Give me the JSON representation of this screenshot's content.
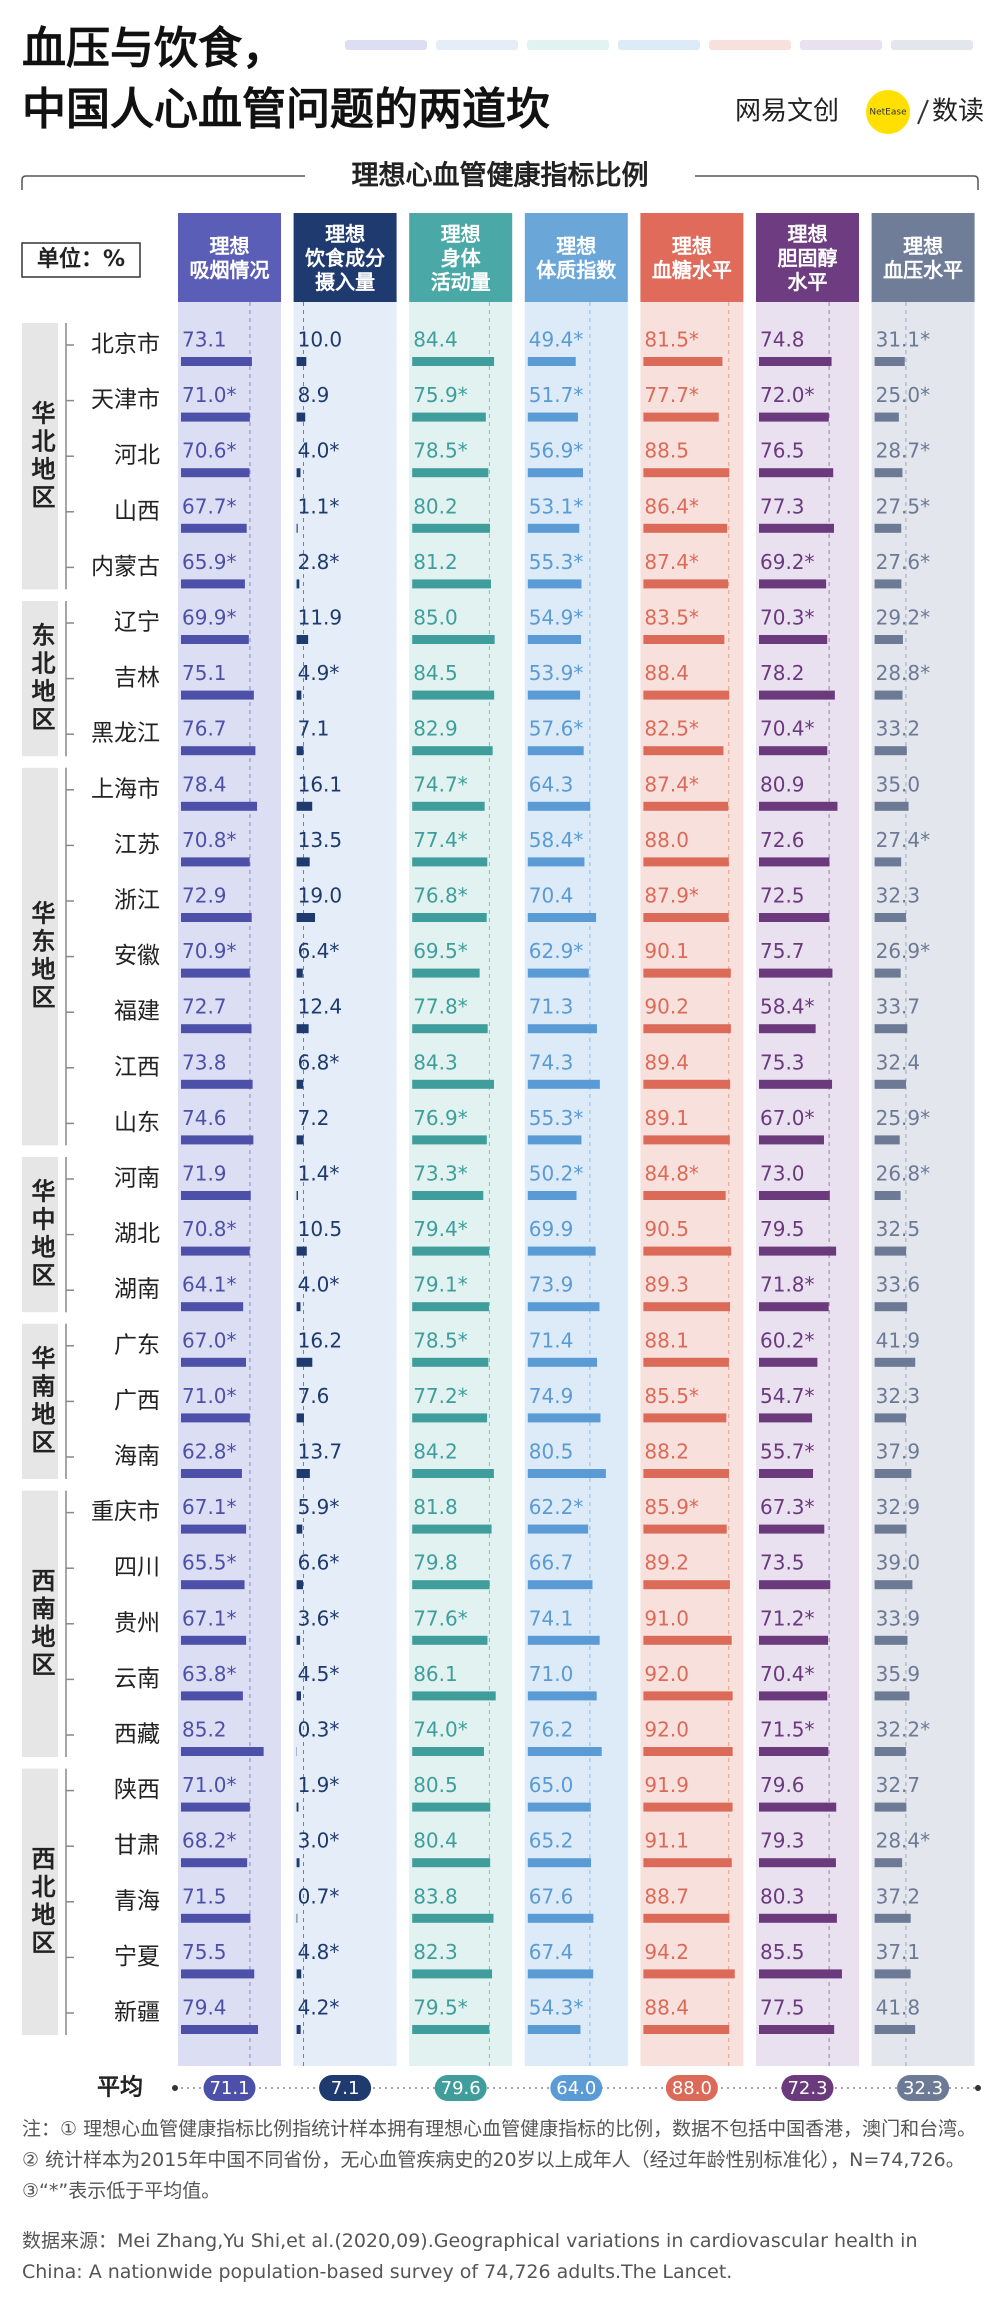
{
  "title": [
    "血压与饮食，",
    "中国人心血管问题的两道坎"
  ],
  "logo": {
    "brand": "网易文创",
    "badge": "NetEase",
    "column": "数读"
  },
  "note": "注：① 理想心血管健康指标比例指统计样本拥有理想心血管健康指标的比例，数据不包括中国香港，澳门和台湾。 ② 统计样本为2015年中国不同省份，无心血管疾病史的20岁以上成年人（经过年龄性别标准化），N=74,726。③“*”表示低于平均值。",
  "source": "数据来源：Mei Zhang,Yu Shi,et al.(2020,09).Geographical variations in cardiovascular health in China: A nationwide population-based survey of 74,726 adults.The Lancet.",
  "chart_data": {
    "type": "bar",
    "title": "理想心血管健康指标比例",
    "unit_label": "单位：%",
    "average_row_label": "平均",
    "xlim": [
      0,
      100
    ],
    "regions": [
      {
        "name": "华北地区",
        "categories": [
          "北京市",
          "天津市",
          "河北",
          "山西",
          "内蒙古"
        ]
      },
      {
        "name": "东北地区",
        "categories": [
          "辽宁",
          "吉林",
          "黑龙江"
        ]
      },
      {
        "name": "华东地区",
        "categories": [
          "上海市",
          "江苏",
          "浙江",
          "安徽",
          "福建",
          "江西",
          "山东"
        ]
      },
      {
        "name": "华中地区",
        "categories": [
          "河南",
          "湖北",
          "湖南"
        ]
      },
      {
        "name": "华南地区",
        "categories": [
          "广东",
          "广西",
          "海南"
        ]
      },
      {
        "name": "西南地区",
        "categories": [
          "重庆市",
          "四川",
          "贵州",
          "云南",
          "西藏"
        ]
      },
      {
        "name": "西北地区",
        "categories": [
          "陕西",
          "甘肃",
          "青海",
          "宁夏",
          "新疆"
        ]
      }
    ],
    "series": [
      {
        "name": "理想\n吸烟情况",
        "color": "#4d50a8",
        "header_color": "#5b5eb6",
        "background": "#dcdef3",
        "values": [
          73.1,
          71.0,
          70.6,
          67.7,
          65.9,
          69.9,
          75.1,
          76.7,
          78.4,
          70.8,
          72.9,
          70.9,
          72.7,
          73.8,
          74.6,
          71.9,
          70.8,
          64.1,
          67.0,
          71.0,
          62.8,
          67.1,
          65.5,
          67.1,
          63.8,
          85.2,
          71.0,
          68.2,
          71.5,
          75.5,
          79.4
        ],
        "value_labels": [
          "73.1",
          "71.0*",
          "70.6*",
          "67.7*",
          "65.9*",
          "69.9*",
          "75.1",
          "76.7",
          "78.4",
          "70.8*",
          "72.9",
          "70.9*",
          "72.7",
          "73.8",
          "74.6",
          "71.9",
          "70.8*",
          "64.1*",
          "67.0*",
          "71.0*",
          "62.8*",
          "67.1*",
          "65.5*",
          "67.1*",
          "63.8*",
          "85.2",
          "71.0*",
          "68.2*",
          "71.5",
          "75.5",
          "79.4"
        ],
        "average": 71.1,
        "average_label": "71.1"
      },
      {
        "name": "理想\n饮食成分\n摄入量",
        "color": "#1f3a6e",
        "header_color": "#1f3a6e",
        "background": "#e4edf8",
        "values": [
          10.0,
          8.9,
          4.0,
          1.1,
          2.8,
          11.9,
          4.9,
          7.1,
          16.1,
          13.5,
          19.0,
          6.4,
          12.4,
          6.8,
          7.2,
          1.4,
          10.5,
          4.0,
          16.2,
          7.6,
          13.7,
          5.9,
          6.6,
          3.6,
          4.5,
          0.3,
          1.9,
          3.0,
          0.7,
          4.8,
          4.2
        ],
        "value_labels": [
          "10.0",
          "8.9",
          "4.0*",
          "1.1*",
          "2.8*",
          "11.9",
          "4.9*",
          "7.1",
          "16.1",
          "13.5",
          "19.0",
          "6.4*",
          "12.4",
          "6.8*",
          "7.2",
          "1.4*",
          "10.5",
          "4.0*",
          "16.2",
          "7.6",
          "13.7",
          "5.9*",
          "6.6*",
          "3.6*",
          "4.5*",
          "0.3*",
          "1.9*",
          "3.0*",
          "0.7*",
          "4.8*",
          "4.2*"
        ],
        "average": 7.1,
        "average_label": "7.1"
      },
      {
        "name": "理想\n身体\n活动量",
        "color": "#3f9e9c",
        "header_color": "#4aa8a6",
        "background": "#e1f2f0",
        "values": [
          84.4,
          75.9,
          78.5,
          80.2,
          81.2,
          85.0,
          84.5,
          82.9,
          74.7,
          77.4,
          76.8,
          69.5,
          77.8,
          84.3,
          76.9,
          73.3,
          79.4,
          79.1,
          78.5,
          77.2,
          84.2,
          81.8,
          79.8,
          77.6,
          86.1,
          74.0,
          80.5,
          80.4,
          83.8,
          82.3,
          79.5
        ],
        "value_labels": [
          "84.4",
          "75.9*",
          "78.5*",
          "80.2",
          "81.2",
          "85.0",
          "84.5",
          "82.9",
          "74.7*",
          "77.4*",
          "76.8*",
          "69.5*",
          "77.8*",
          "84.3",
          "76.9*",
          "73.3*",
          "79.4*",
          "79.1*",
          "78.5*",
          "77.2*",
          "84.2",
          "81.8",
          "79.8",
          "77.6*",
          "86.1",
          "74.0*",
          "80.5",
          "80.4",
          "83.8",
          "82.3",
          "79.5*"
        ],
        "average": 79.6,
        "average_label": "79.6"
      },
      {
        "name": "理想\n体质指数",
        "color": "#5b9bd5",
        "header_color": "#6aa6d8",
        "background": "#dcebf7",
        "values": [
          49.4,
          51.7,
          56.9,
          53.1,
          55.3,
          54.9,
          53.9,
          57.6,
          64.3,
          58.4,
          70.4,
          62.9,
          71.3,
          74.3,
          55.3,
          50.2,
          69.9,
          73.9,
          71.4,
          74.9,
          80.5,
          62.2,
          66.7,
          74.1,
          71.0,
          76.2,
          65.0,
          65.2,
          67.6,
          67.4,
          54.3
        ],
        "value_labels": [
          "49.4*",
          "51.7*",
          "56.9*",
          "53.1*",
          "55.3*",
          "54.9*",
          "53.9*",
          "57.6*",
          "64.3",
          "58.4*",
          "70.4",
          "62.9*",
          "71.3",
          "74.3",
          "55.3*",
          "50.2*",
          "69.9",
          "73.9",
          "71.4",
          "74.9",
          "80.5",
          "62.2*",
          "66.7",
          "74.1",
          "71.0",
          "76.2",
          "65.0",
          "65.2",
          "67.6",
          "67.4",
          "54.3*"
        ],
        "average": 64.0,
        "average_label": "64.0"
      },
      {
        "name": "理想\n血糖水平",
        "color": "#dc6a58",
        "header_color": "#e06b5a",
        "background": "#f8e1dc",
        "values": [
          81.5,
          77.7,
          88.5,
          86.4,
          87.4,
          83.5,
          88.4,
          82.5,
          87.4,
          88.0,
          87.9,
          90.1,
          90.2,
          89.4,
          89.1,
          84.8,
          90.5,
          89.3,
          88.1,
          85.5,
          88.2,
          85.9,
          89.2,
          91.0,
          92.0,
          92.0,
          91.9,
          91.1,
          88.7,
          94.2,
          88.4
        ],
        "value_labels": [
          "81.5*",
          "77.7*",
          "88.5",
          "86.4*",
          "87.4*",
          "83.5*",
          "88.4",
          "82.5*",
          "87.4*",
          "88.0",
          "87.9*",
          "90.1",
          "90.2",
          "89.4",
          "89.1",
          "84.8*",
          "90.5",
          "89.3",
          "88.1",
          "85.5*",
          "88.2",
          "85.9*",
          "89.2",
          "91.0",
          "92.0",
          "92.0",
          "91.9",
          "91.1",
          "88.7",
          "94.2",
          "88.4"
        ],
        "average": 88.0,
        "average_label": "88.0"
      },
      {
        "name": "理想\n胆固醇\n水平",
        "color": "#6b3a7d",
        "header_color": "#6e3c80",
        "background": "#e9e0f0",
        "values": [
          74.8,
          72.0,
          76.5,
          77.3,
          69.2,
          70.3,
          78.2,
          70.4,
          80.9,
          72.6,
          72.5,
          75.7,
          58.4,
          75.3,
          67.0,
          73.0,
          79.5,
          71.8,
          60.2,
          54.7,
          55.7,
          67.3,
          73.5,
          71.2,
          70.4,
          71.5,
          79.6,
          79.3,
          80.3,
          85.5,
          77.5
        ],
        "value_labels": [
          "74.8",
          "72.0*",
          "76.5",
          "77.3",
          "69.2*",
          "70.3*",
          "78.2",
          "70.4*",
          "80.9",
          "72.6",
          "72.5",
          "75.7",
          "58.4*",
          "75.3",
          "67.0*",
          "73.0",
          "79.5",
          "71.8*",
          "60.2*",
          "54.7*",
          "55.7*",
          "67.3*",
          "73.5",
          "71.2*",
          "70.4*",
          "71.5*",
          "79.6",
          "79.3",
          "80.3",
          "85.5",
          "77.5"
        ],
        "average": 72.3,
        "average_label": "72.3"
      },
      {
        "name": "理想\n血压水平",
        "color": "#6c7a96",
        "header_color": "#6f7d98",
        "background": "#e3e6ed",
        "values": [
          31.1,
          25.0,
          28.7,
          27.5,
          27.6,
          29.2,
          28.8,
          33.2,
          35.0,
          27.4,
          32.3,
          26.9,
          33.7,
          32.4,
          25.9,
          26.8,
          32.5,
          33.6,
          41.9,
          32.3,
          37.9,
          32.9,
          39.0,
          33.9,
          35.9,
          32.2,
          32.7,
          28.4,
          37.2,
          37.1,
          41.8
        ],
        "value_labels": [
          "31.1*",
          "25.0*",
          "28.7*",
          "27.5*",
          "27.6*",
          "29.2*",
          "28.8*",
          "33.2",
          "35.0",
          "27.4*",
          "32.3",
          "26.9*",
          "33.7",
          "32.4",
          "25.9*",
          "26.8*",
          "32.5",
          "33.6",
          "41.9",
          "32.3",
          "37.9",
          "32.9",
          "39.0",
          "33.9",
          "35.9",
          "32.2*",
          "32.7",
          "28.4*",
          "37.2",
          "37.1",
          "41.8"
        ],
        "average": 32.3,
        "average_label": "32.3"
      }
    ]
  }
}
